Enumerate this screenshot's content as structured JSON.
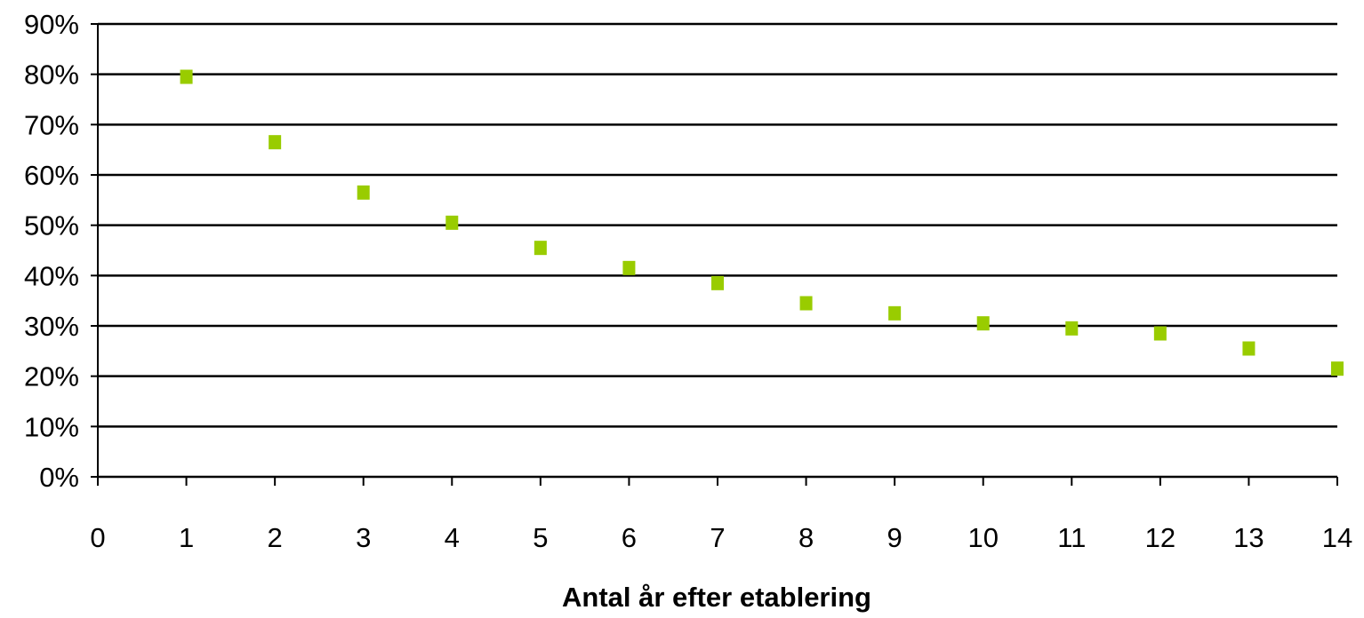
{
  "chart_data": {
    "type": "scatter",
    "title": "",
    "xlabel": "Antal år efter etablering",
    "ylabel": "",
    "xlim": [
      0,
      14
    ],
    "ylim": [
      0,
      90
    ],
    "x_ticks": [
      "0",
      "1",
      "2",
      "3",
      "4",
      "5",
      "6",
      "7",
      "8",
      "9",
      "10",
      "11",
      "12",
      "13",
      "14"
    ],
    "y_ticks": [
      "0%",
      "10%",
      "20%",
      "30%",
      "40%",
      "50%",
      "60%",
      "70%",
      "80%",
      "90%"
    ],
    "y_unit": "%",
    "grid": "horizontal",
    "legend": "none",
    "marker": "square",
    "colors": {
      "marker": "#99cc00",
      "gridline": "#000000",
      "axis": "#000000"
    },
    "series": [
      {
        "x": [
          1,
          2,
          3,
          4,
          5,
          6,
          7,
          8,
          9,
          10,
          11,
          12,
          13,
          14
        ],
        "y": [
          79.5,
          66.5,
          56.5,
          50.5,
          45.5,
          41.5,
          38.5,
          34.5,
          32.5,
          30.5,
          29.5,
          28.5,
          25.5,
          21.5
        ]
      }
    ]
  }
}
